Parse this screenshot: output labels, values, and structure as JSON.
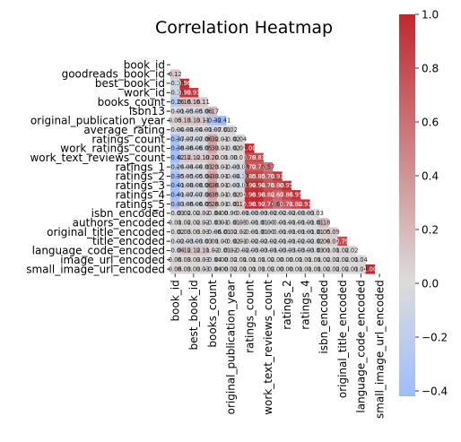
{
  "chart_data": {
    "type": "heatmap",
    "title": "Correlation Heatmap",
    "mask": "upper-triangle",
    "annotation_format": "2 decimals",
    "row_labels": [
      "book_id",
      "goodreads_book_id",
      "best_book_id",
      "work_id",
      "books_count",
      "isbn13",
      "original_publication_year",
      "average_rating",
      "ratings_count",
      "work_ratings_count",
      "work_text_reviews_count",
      "ratings_1",
      "ratings_2",
      "ratings_3",
      "ratings_4",
      "ratings_5",
      "isbn_encoded",
      "authors_encoded",
      "original_title_encoded",
      "title_encoded",
      "language_code_encoded",
      "image_url_encoded",
      "small_image_url_encoded"
    ],
    "x_tick_labels": [
      "book_id",
      "best_book_id",
      "books_count",
      "original_publication_year",
      "ratings_count",
      "work_text_reviews_count",
      "ratings_2",
      "ratings_4",
      "isbn_encoded",
      "original_title_encoded",
      "language_code_encoded",
      "small_image_url_encoded"
    ],
    "colorbar": {
      "min": -0.42,
      "max": 1.0,
      "ticks": [
        "1.0",
        "0.8",
        "0.6",
        "0.4",
        "0.2",
        "0.0",
        "−0.2",
        "−0.4"
      ],
      "colormap": "coolwarm",
      "low_color": "#9dbdff",
      "mid_color": "#dddcdc",
      "high_color": "#c0282d"
    },
    "values": [
      [],
      [
        0.12
      ],
      [
        -0.1,
        0.96
      ],
      [
        -0.1,
        0.93,
        0.93
      ],
      [
        -0.26,
        0.16,
        0.16,
        0.11
      ],
      [
        -0.01,
        -0.05,
        -0.05,
        -0.06,
        0.17
      ],
      [
        0.05,
        0.13,
        0.13,
        0.11,
        -0.32,
        -0.41
      ],
      [
        -0.04,
        -0.04,
        -0.04,
        -0.01,
        -0.07,
        -0.01,
        0.02
      ],
      [
        -0.37,
        -0.07,
        -0.07,
        -0.06,
        0.32,
        0.01,
        -0.02,
        0.04
      ],
      [
        -0.38,
        -0.06,
        -0.06,
        -0.05,
        0.33,
        0.01,
        -0.02,
        0.05,
        1.0
      ],
      [
        -0.42,
        0.12,
        0.12,
        0.1,
        0.2,
        0.01,
        0.0,
        0.01,
        0.78,
        0.81
      ],
      [
        -0.24,
        -0.04,
        -0.04,
        -0.03,
        0.23,
        0.01,
        -0.03,
        -0.08,
        0.72,
        0.72,
        0.57
      ],
      [
        -0.35,
        -0.05,
        -0.05,
        -0.04,
        0.33,
        0.01,
        -0.04,
        -0.12,
        0.85,
        0.85,
        0.7,
        0.93
      ],
      [
        -0.41,
        -0.08,
        -0.08,
        -0.06,
        0.38,
        0.01,
        -0.03,
        -0.07,
        0.94,
        0.94,
        0.76,
        0.8,
        0.95
      ],
      [
        -0.41,
        -0.07,
        -0.07,
        -0.06,
        0.35,
        0.01,
        -0.02,
        0.04,
        0.98,
        0.98,
        0.82,
        0.67,
        0.84,
        0.95
      ],
      [
        -0.33,
        -0.06,
        -0.06,
        -0.05,
        0.28,
        0.01,
        -0.01,
        0.12,
        0.96,
        0.97,
        0.76,
        0.6,
        0.71,
        0.82,
        0.93
      ],
      [
        -0.03,
        0.02,
        0.02,
        0.02,
        -0.04,
        0.0,
        0.0,
        -0.01,
        -0.03,
        -0.03,
        -0.02,
        -0.02,
        -0.02,
        -0.03,
        -0.03,
        -0.03
      ],
      [
        0.01,
        0.02,
        0.02,
        0.02,
        -0.03,
        0.01,
        -0.01,
        0.05,
        -0.01,
        -0.01,
        0.0,
        -0.01,
        -0.01,
        -0.01,
        -0.01,
        -0.01,
        0.18
      ],
      [
        -0.02,
        0.03,
        0.03,
        0.03,
        -0.06,
        -0.01,
        0.02,
        0.02,
        -0.01,
        -0.01,
        0.0,
        -0.01,
        -0.01,
        -0.01,
        -0.01,
        -0.01,
        0.05,
        0.09
      ],
      [
        -0.02,
        -0.03,
        -0.03,
        -0.03,
        0.01,
        0.0,
        -0.02,
        0.01,
        -0.02,
        -0.02,
        -0.02,
        -0.01,
        -0.01,
        -0.02,
        -0.02,
        -0.02,
        0.04,
        0.06,
        0.79
      ],
      [
        -0.04,
        0.12,
        0.12,
        0.11,
        0.02,
        -0.01,
        0.02,
        -0.02,
        -0.03,
        -0.03,
        -0.01,
        -0.03,
        -0.03,
        -0.03,
        -0.03,
        -0.03,
        0.01,
        0.01,
        0.02,
        0.02
      ],
      [
        0.06,
        0.03,
        0.03,
        0.03,
        -0.04,
        0.0,
        0.02,
        0.01,
        0.01,
        0.01,
        0.02,
        0.0,
        0.0,
        0.01,
        0.01,
        0.01,
        0.02,
        0.02,
        0.02,
        0.01,
        0.04
      ],
      [
        0.06,
        0.03,
        0.03,
        0.03,
        -0.04,
        0.0,
        0.02,
        0.01,
        0.01,
        0.01,
        0.02,
        0.0,
        0.0,
        0.01,
        0.01,
        0.01,
        0.02,
        0.02,
        0.02,
        0.01,
        0.04,
        1.0
      ]
    ]
  }
}
